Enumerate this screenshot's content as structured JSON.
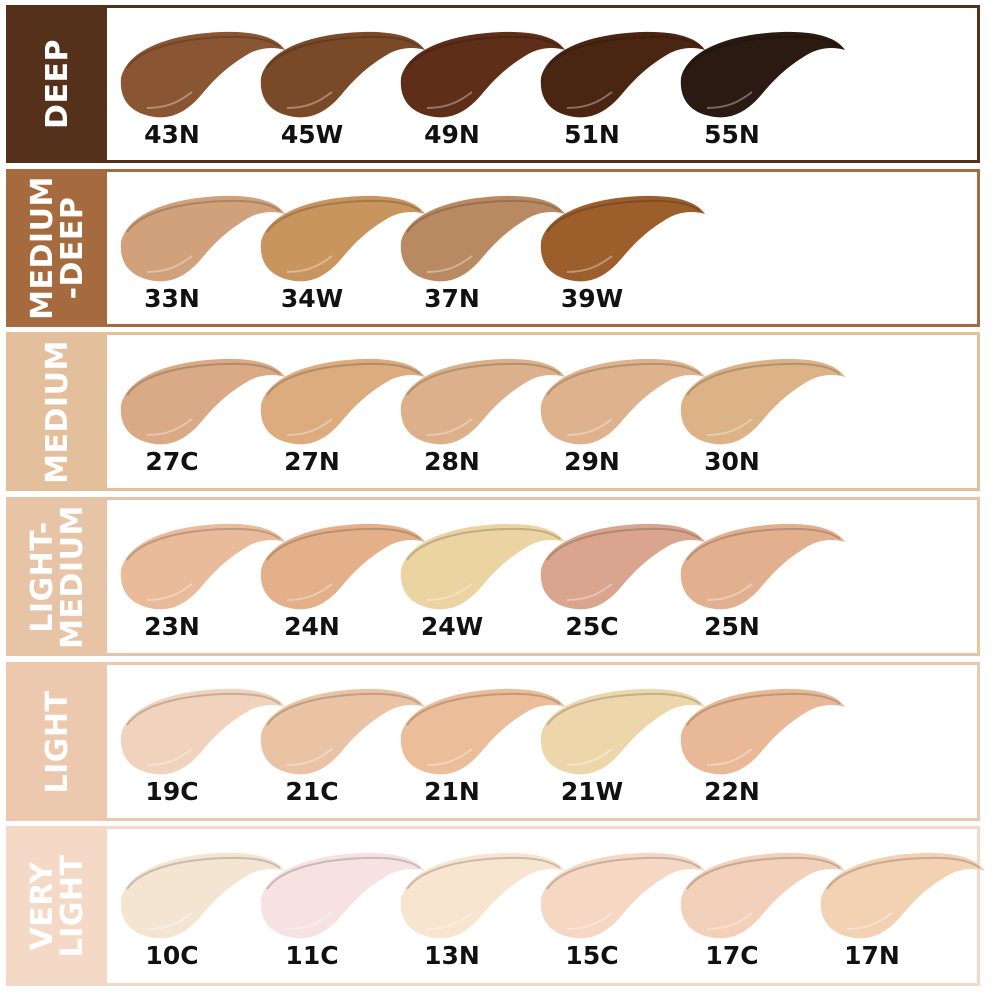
{
  "groups": [
    {
      "name": "DEEP",
      "color": "#55301a",
      "shades": [
        {
          "code": "43N",
          "color": "#8a5532"
        },
        {
          "code": "45W",
          "color": "#7a4a28"
        },
        {
          "code": "49N",
          "color": "#5e2e18"
        },
        {
          "code": "51N",
          "color": "#4a2612"
        },
        {
          "code": "55N",
          "color": "#2a1a12"
        }
      ]
    },
    {
      "name": "MEDIUM\n-DEEP",
      "color": "#a56a3e",
      "shades": [
        {
          "code": "33N",
          "color": "#d0a17a"
        },
        {
          "code": "34W",
          "color": "#c9955f"
        },
        {
          "code": "37N",
          "color": "#b98a62"
        },
        {
          "code": "39W",
          "color": "#9c5f2c"
        }
      ]
    },
    {
      "name": "MEDIUM",
      "color": "#e3bf9b",
      "shades": [
        {
          "code": "27C",
          "color": "#d9aa85"
        },
        {
          "code": "27N",
          "color": "#dcab7e"
        },
        {
          "code": "28N",
          "color": "#dcb08a"
        },
        {
          "code": "29N",
          "color": "#deb28c"
        },
        {
          "code": "30N",
          "color": "#dbb386"
        }
      ]
    },
    {
      "name": "LIGHT-\nMEDIUM",
      "color": "#e7c4a6",
      "shades": [
        {
          "code": "23N",
          "color": "#e9bb9b"
        },
        {
          "code": "24N",
          "color": "#e3b08a"
        },
        {
          "code": "24W",
          "color": "#ecd3a2"
        },
        {
          "code": "25C",
          "color": "#d9a58e"
        },
        {
          "code": "25N",
          "color": "#e3b08f"
        }
      ]
    },
    {
      "name": "LIGHT",
      "color": "#ebc8ae",
      "shades": [
        {
          "code": "19C",
          "color": "#f1d3bd"
        },
        {
          "code": "21C",
          "color": "#eac3a5"
        },
        {
          "code": "21N",
          "color": "#ebbd98"
        },
        {
          "code": "21W",
          "color": "#eed6ab"
        },
        {
          "code": "22N",
          "color": "#e9b997"
        }
      ]
    },
    {
      "name": "VERY\nLIGHT",
      "color": "#f4dac6",
      "shades": [
        {
          "code": "10C",
          "color": "#f4e5d3"
        },
        {
          "code": "11C",
          "color": "#f6e2e2"
        },
        {
          "code": "13N",
          "color": "#f7e5cf"
        },
        {
          "code": "15C",
          "color": "#f5d7c4"
        },
        {
          "code": "17C",
          "color": "#f2d0b9"
        },
        {
          "code": "17N",
          "color": "#f3d1b3"
        }
      ]
    }
  ]
}
